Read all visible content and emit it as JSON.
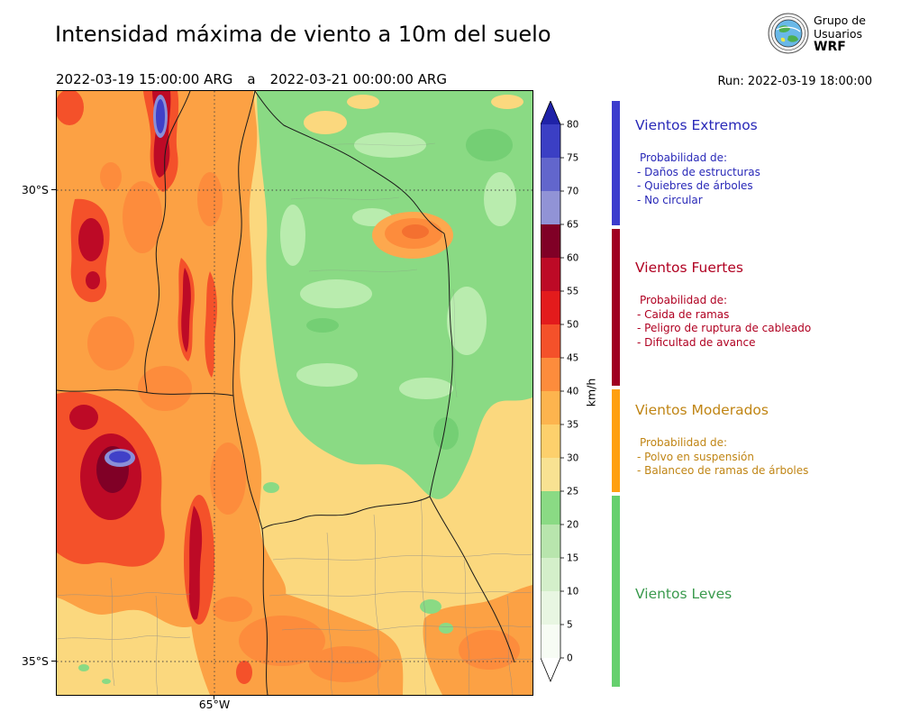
{
  "header": {
    "title": "Intensidad máxima de viento a 10m del suelo",
    "period_start": "2022-03-19 15:00:00 ARG",
    "period_separator": "a",
    "period_end": "2022-03-21 00:00:00 ARG",
    "run_label": "Run: 2022-03-19 18:00:00",
    "logo": {
      "line1": "Grupo de",
      "line2": "Usuarios",
      "line3": "WRF"
    }
  },
  "map": {
    "y_ticks": [
      "30°S",
      "35°S"
    ],
    "x_ticks": [
      "65°W"
    ]
  },
  "colorbar": {
    "unit_label": "km/h",
    "ticks": [
      "0",
      "5",
      "10",
      "15",
      "20",
      "25",
      "30",
      "35",
      "40",
      "45",
      "50",
      "55",
      "60",
      "65",
      "70",
      "75",
      "80"
    ],
    "levels": [
      "#f7fcf4",
      "#e8f6e2",
      "#d4efca",
      "#b8e5ad",
      "#8ada84",
      "#f8e292",
      "#fdd06c",
      "#fdb44e",
      "#fd8c3c",
      "#f4512a",
      "#e31b1c",
      "#bd0a26",
      "#800026",
      "#9193d6",
      "#6266cc",
      "#3b3fc4"
    ],
    "over_color": "#1f22a8",
    "under_color": "#ffffff"
  },
  "legend": {
    "sections": [
      {
        "heading": "Vientos Extremos",
        "color": "#3c3ccd",
        "text_color": "#2929b8",
        "intro": "Probabilidad de:",
        "items": [
          "- Daños de estructuras",
          "- Quiebres de árboles",
          "- No circular"
        ]
      },
      {
        "heading": "Vientos Fuertes",
        "color": "#a00021",
        "text_color": "#b00021",
        "intro": "Probabilidad de:",
        "items": [
          "- Caida de ramas",
          "- Peligro de ruptura de cableado",
          "- Dificultad de avance"
        ]
      },
      {
        "heading": "Vientos Moderados",
        "color": "#ffa011",
        "text_color": "#c08514",
        "intro": "Probabilidad de:",
        "items": [
          "- Polvo en suspensión",
          "- Balanceo de ramas de árboles"
        ]
      },
      {
        "heading": "Vientos Leves",
        "color": "#66d06e",
        "text_color": "#3a9a4d",
        "intro": "",
        "items": []
      }
    ]
  },
  "chart_data": {
    "type": "heatmap",
    "title": "Intensidad máxima de viento a 10m del suelo",
    "period_start": "2022-03-19 15:00:00 ARG",
    "period_end": "2022-03-21 00:00:00 ARG",
    "model_run": "Run: 2022-03-19 18:00:00",
    "units": "km/h",
    "colorbar_levels": [
      0,
      5,
      10,
      15,
      20,
      25,
      30,
      35,
      40,
      45,
      50,
      55,
      60,
      65,
      70,
      75,
      80
    ],
    "colorbar_colors_bottom_to_top": [
      "#f7fcf4",
      "#e8f6e2",
      "#d4efca",
      "#b8e5ad",
      "#8ada84",
      "#f8e292",
      "#fdd06c",
      "#fdb44e",
      "#fd8c3c",
      "#f4512a",
      "#e31b1c",
      "#bd0a26",
      "#800026",
      "#9193d6",
      "#6266cc",
      "#3b3fc4"
    ],
    "colorbar_extends": "both",
    "x_tick_labels": [
      "65°W"
    ],
    "y_tick_labels": [
      "30°S",
      "35°S"
    ],
    "wind_categories": [
      {
        "name": "Vientos Leves",
        "range_kmh": [
          0,
          25
        ]
      },
      {
        "name": "Vientos Moderados",
        "range_kmh": [
          25,
          40
        ]
      },
      {
        "name": "Vientos Fuertes",
        "range_kmh": [
          40,
          65
        ]
      },
      {
        "name": "Vientos Extremos",
        "range_kmh": [
          65,
          85
        ]
      }
    ],
    "map_description": "Filled contour map over central Argentina: extreme winds (small blue spots inside dark red cores) and strong winds (red streaks) along the western mountains, moderate winds (orange/tan) across the center and south, light winds (green) over the northeast."
  }
}
